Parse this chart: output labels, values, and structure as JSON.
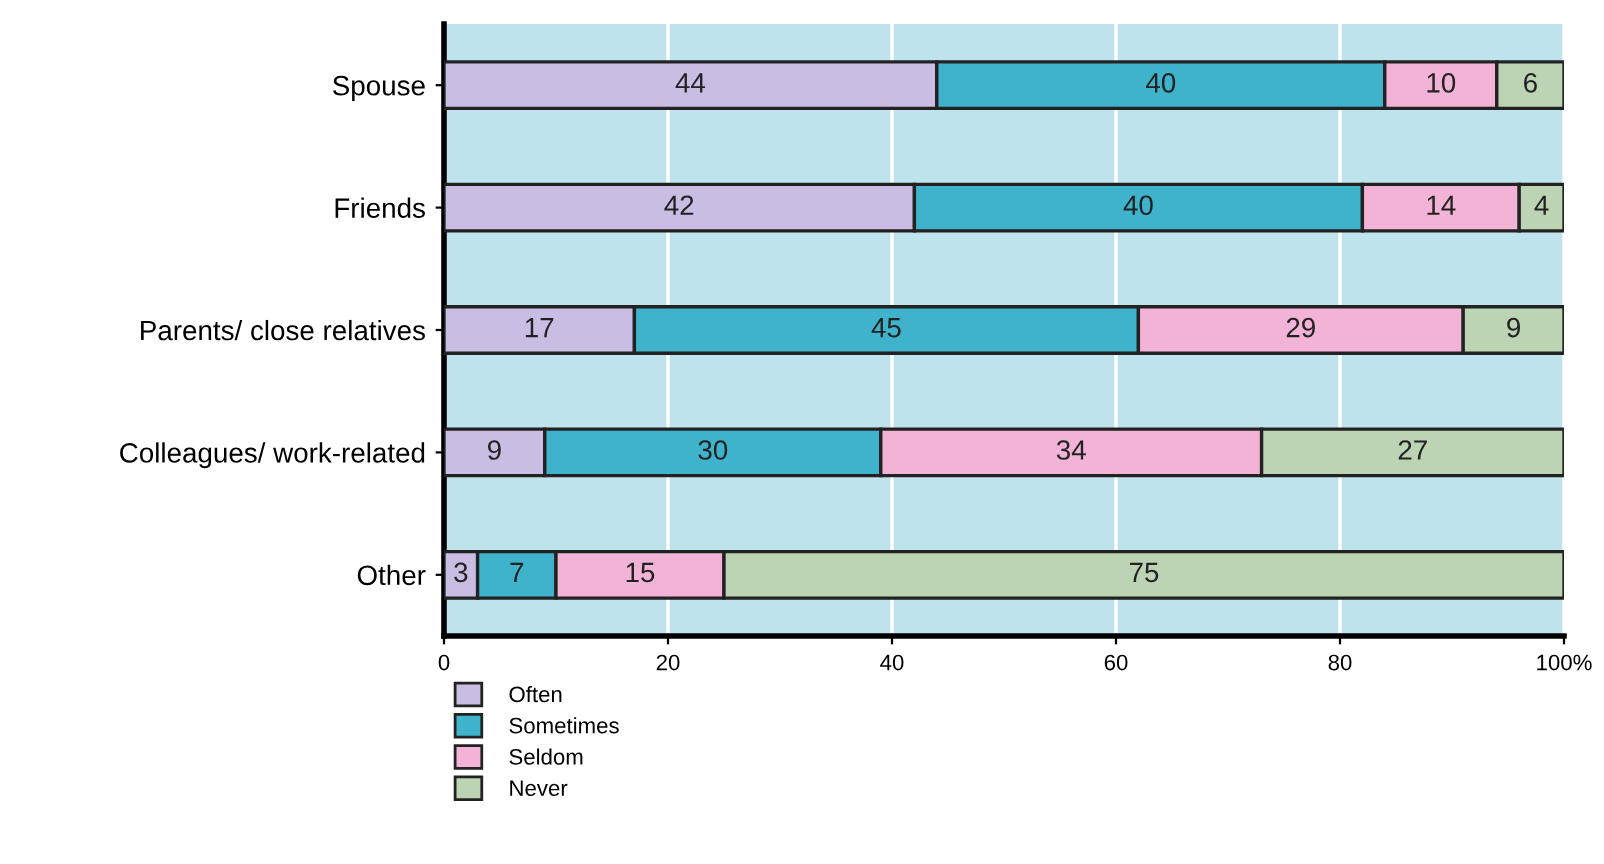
{
  "chart_data": {
    "type": "bar",
    "orientation": "horizontal",
    "stacked": true,
    "data_labels": true,
    "grid": "x",
    "legend": "bottom left",
    "categories": [
      "Spouse",
      "Friends",
      "Parents/ close relatives",
      "Colleagues/ work-related",
      "Other"
    ],
    "series": [
      {
        "name": "Often",
        "color": "#c9bde3",
        "values": [
          44,
          42,
          17,
          9,
          3
        ]
      },
      {
        "name": "Sometimes",
        "color": "#3fb3cc",
        "values": [
          40,
          40,
          45,
          30,
          7
        ]
      },
      {
        "name": "Seldom",
        "color": "#f2b3d6",
        "values": [
          10,
          14,
          29,
          34,
          15
        ]
      },
      {
        "name": "Never",
        "color": "#bcd4b4",
        "values": [
          6,
          4,
          9,
          27,
          75
        ]
      }
    ],
    "xlim": [
      0,
      100
    ],
    "xticks": [
      0,
      20,
      40,
      60,
      80,
      {
        "value": 100,
        "label": "100%"
      }
    ]
  }
}
